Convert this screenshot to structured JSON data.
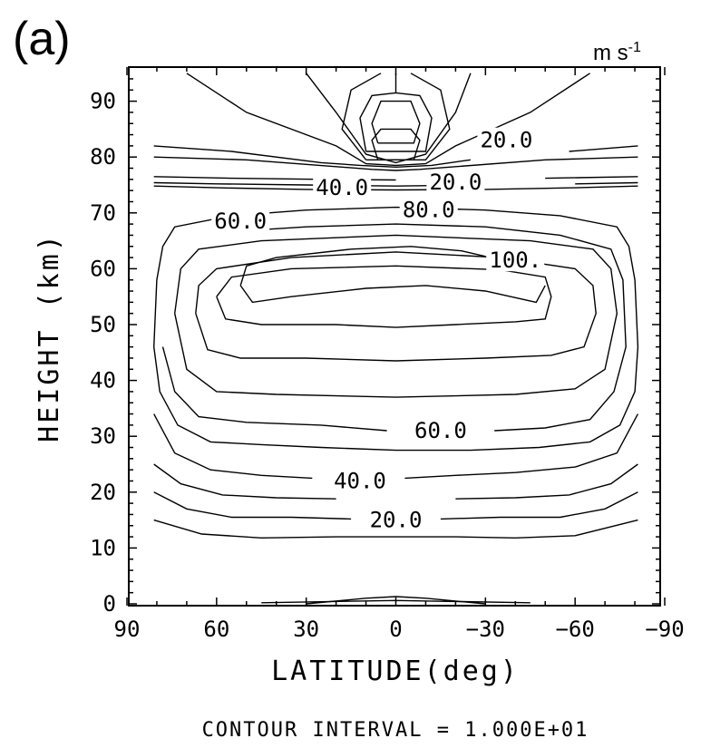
{
  "figure": {
    "panel_label": "(a)",
    "units": "m s",
    "units_sup": "-1",
    "footer": "CONTOUR INTERVAL = 1.000E+01"
  },
  "chart_data": {
    "type": "contour",
    "xlabel": "LATITUDE(deg)",
    "ylabel": "HEIGHT (km)",
    "x_ticks": [
      90,
      60,
      30,
      0,
      -30,
      -60,
      -90
    ],
    "x_tick_labels": [
      "90",
      "60",
      "30",
      "0",
      "−30",
      "−60",
      "−90"
    ],
    "y_ticks": [
      0,
      10,
      20,
      30,
      40,
      50,
      60,
      70,
      80,
      90
    ],
    "y_tick_labels": [
      "0",
      "10",
      "20",
      "30",
      "40",
      "50",
      "60",
      "70",
      "80",
      "90"
    ],
    "xlim": [
      90,
      -90
    ],
    "ylim": [
      0,
      95
    ],
    "contour_interval": 10,
    "contour_labels": [
      {
        "text": "20.0",
        "lat": 0,
        "z": 15
      },
      {
        "text": "40.0",
        "lat": 12,
        "z": 22
      },
      {
        "text": "60.0",
        "lat": -15,
        "z": 31
      },
      {
        "text": "60.0",
        "lat": 52,
        "z": 68.5
      },
      {
        "text": "40.0",
        "lat": 18,
        "z": 74.5
      },
      {
        "text": "80.0",
        "lat": -11,
        "z": 70.5
      },
      {
        "text": "20.0",
        "lat": -20,
        "z": 75.5
      },
      {
        "text": "100.",
        "lat": -40,
        "z": 61.5
      },
      {
        "text": "20.0",
        "lat": -37,
        "z": 83
      }
    ],
    "contours": [
      {
        "level": 10,
        "points": [
          [
            81,
            15
          ],
          [
            65,
            12.5
          ],
          [
            45,
            11.8
          ],
          [
            20,
            12
          ],
          [
            0,
            12
          ],
          [
            -20,
            12
          ],
          [
            -40,
            11.8
          ],
          [
            -60,
            12.2
          ],
          [
            -81,
            15
          ]
        ]
      },
      {
        "level": 20,
        "points": [
          [
            81,
            20
          ],
          [
            70,
            17
          ],
          [
            55,
            15.5
          ],
          [
            35,
            15.5
          ],
          [
            15,
            15.2
          ]
        ]
      },
      {
        "level": 20,
        "points": [
          [
            -15,
            15.2
          ],
          [
            -35,
            15.5
          ],
          [
            -55,
            15.5
          ],
          [
            -70,
            17
          ],
          [
            -81,
            20
          ]
        ]
      },
      {
        "level": 30,
        "points": [
          [
            81,
            25
          ],
          [
            72,
            21.5
          ],
          [
            58,
            19.5
          ],
          [
            40,
            19
          ],
          [
            20,
            18.8
          ]
        ]
      },
      {
        "level": 30,
        "points": [
          [
            -20,
            18.8
          ],
          [
            -40,
            19
          ],
          [
            -58,
            19.5
          ],
          [
            -72,
            21.5
          ],
          [
            -81,
            25
          ]
        ]
      },
      {
        "level": 40,
        "points": [
          [
            81,
            34
          ],
          [
            74,
            27
          ],
          [
            62,
            24
          ],
          [
            45,
            23
          ],
          [
            28,
            22.5
          ]
        ]
      },
      {
        "level": 40,
        "points": [
          [
            -3,
            22.5
          ],
          [
            -20,
            23
          ],
          [
            -40,
            23.5
          ],
          [
            -60,
            24.5
          ],
          [
            -74,
            27
          ],
          [
            -81,
            34
          ]
        ]
      },
      {
        "level": 50,
        "points": [
          [
            81,
            46
          ],
          [
            79,
            38
          ],
          [
            73,
            32
          ],
          [
            62,
            29
          ],
          [
            45,
            28.5
          ],
          [
            25,
            28
          ],
          [
            0,
            27.5
          ],
          [
            -25,
            27.5
          ],
          [
            -48,
            28
          ],
          [
            -65,
            29
          ],
          [
            -75,
            32
          ],
          [
            -80,
            38
          ],
          [
            -81,
            46
          ],
          [
            -80,
            58
          ],
          [
            -78,
            64
          ],
          [
            -74,
            67.5
          ],
          [
            -55,
            69.5
          ],
          [
            -30,
            70.5
          ],
          [
            0,
            71
          ],
          [
            30,
            70.5
          ],
          [
            55,
            69.5
          ],
          [
            74,
            67.5
          ],
          [
            78,
            64
          ],
          [
            80,
            58
          ],
          [
            81,
            46
          ]
        ]
      },
      {
        "level": 60,
        "points": [
          [
            78,
            46
          ],
          [
            74,
            38
          ],
          [
            66,
            33.5
          ],
          [
            50,
            32.5
          ],
          [
            25,
            32
          ],
          [
            3,
            31
          ]
        ]
      },
      {
        "level": 60,
        "points": [
          [
            -33,
            31
          ],
          [
            -50,
            31.5
          ],
          [
            -65,
            33
          ],
          [
            -73,
            38
          ],
          [
            -77,
            46
          ],
          [
            -76,
            58
          ],
          [
            -72,
            63.5
          ],
          [
            -55,
            66
          ],
          [
            -30,
            67.5
          ],
          [
            0,
            68
          ],
          [
            30,
            67.5
          ],
          [
            45,
            67
          ]
        ]
      },
      {
        "level": 70,
        "points": [
          [
            74,
            52
          ],
          [
            70,
            42
          ],
          [
            60,
            38
          ],
          [
            40,
            37.5
          ],
          [
            0,
            37
          ],
          [
            -40,
            37.5
          ],
          [
            -60,
            38.5
          ],
          [
            -70,
            42
          ],
          [
            -74,
            52
          ],
          [
            -72,
            60
          ],
          [
            -66,
            63.5
          ],
          [
            -45,
            65
          ],
          [
            0,
            66
          ],
          [
            45,
            65
          ],
          [
            66,
            63.5
          ],
          [
            72,
            60
          ],
          [
            74,
            52
          ]
        ]
      },
      {
        "level": 80,
        "points": [
          [
            67,
            52
          ],
          [
            63,
            45.5
          ],
          [
            52,
            44
          ],
          [
            30,
            44
          ],
          [
            0,
            43.5
          ],
          [
            -30,
            44
          ],
          [
            -52,
            44.5
          ],
          [
            -63,
            46
          ],
          [
            -67,
            52
          ],
          [
            -66,
            57
          ],
          [
            -60,
            60
          ],
          [
            -35,
            62
          ],
          [
            0,
            63
          ],
          [
            35,
            62
          ],
          [
            60,
            60
          ],
          [
            66,
            57
          ],
          [
            67,
            52
          ]
        ]
      },
      {
        "level": 90,
        "points": [
          [
            60,
            55
          ],
          [
            57,
            51
          ],
          [
            45,
            50
          ],
          [
            20,
            50
          ],
          [
            0,
            49.5
          ],
          [
            -20,
            50
          ],
          [
            -40,
            50.5
          ],
          [
            -50,
            51
          ],
          [
            -52,
            55
          ],
          [
            -50,
            58.5
          ],
          [
            -35,
            59.8
          ],
          [
            0,
            60.5
          ],
          [
            35,
            60
          ],
          [
            55,
            58.5
          ],
          [
            60,
            55
          ]
        ]
      },
      {
        "level": 100,
        "points": [
          [
            52,
            57
          ],
          [
            48,
            54
          ],
          [
            35,
            55
          ],
          [
            10,
            56.5
          ],
          [
            -10,
            57
          ],
          [
            -30,
            56
          ],
          [
            -47,
            54
          ],
          [
            -50,
            57
          ]
        ]
      },
      {
        "level": 100,
        "points": [
          [
            52,
            57
          ],
          [
            50,
            60.5
          ],
          [
            40,
            62
          ],
          [
            15,
            63.5
          ],
          [
            -5,
            64
          ],
          [
            -22,
            63.2
          ],
          [
            -30,
            62.2
          ]
        ]
      },
      {
        "level": 40,
        "points": [
          [
            81,
            74.8
          ],
          [
            60,
            74.5
          ],
          [
            30,
            74.2
          ],
          [
            0,
            74.1
          ],
          [
            -30,
            74.2
          ],
          [
            -60,
            74.5
          ],
          [
            -81,
            74.8
          ]
        ]
      },
      {
        "level": 30,
        "points": [
          [
            81,
            75.4
          ],
          [
            60,
            75.2
          ],
          [
            30,
            75
          ],
          [
            0,
            74.8
          ],
          [
            -15,
            74.9
          ]
        ]
      },
      {
        "level": 30,
        "points": [
          [
            -60,
            75.2
          ],
          [
            -81,
            75.4
          ]
        ]
      },
      {
        "level": 20,
        "points": [
          [
            81,
            76.5
          ],
          [
            55,
            76.2
          ],
          [
            25,
            76
          ],
          [
            0,
            75.9
          ]
        ]
      },
      {
        "level": 20,
        "points": [
          [
            -50,
            76.2
          ],
          [
            -81,
            76.5
          ]
        ]
      },
      {
        "level": 10,
        "points": [
          [
            81,
            80
          ],
          [
            50,
            79.5
          ],
          [
            18,
            78.2
          ],
          [
            8,
            77.8
          ],
          [
            0,
            77.6
          ],
          [
            -8,
            77.8
          ],
          [
            -18,
            78.2
          ],
          [
            -50,
            79.5
          ],
          [
            -81,
            80
          ]
        ]
      },
      {
        "level": 20,
        "points": [
          [
            81,
            82
          ],
          [
            55,
            81
          ],
          [
            25,
            79
          ],
          [
            12,
            78.5
          ],
          [
            0,
            78.2
          ],
          [
            -12,
            78.5
          ],
          [
            -25,
            79.5
          ]
        ]
      },
      {
        "level": 20,
        "points": [
          [
            -58,
            81
          ],
          [
            -81,
            82
          ]
        ]
      },
      {
        "level": 10,
        "points": [
          [
            70,
            95
          ],
          [
            50,
            88
          ],
          [
            20,
            82
          ],
          [
            10,
            78.8
          ],
          [
            0,
            78.5
          ],
          [
            -10,
            78.8
          ],
          [
            -20,
            82
          ],
          [
            -45,
            88
          ],
          [
            -65,
            95
          ]
        ]
      },
      {
        "level": 20,
        "points": [
          [
            30,
            95
          ],
          [
            20,
            88
          ],
          [
            10,
            80.5
          ],
          [
            0,
            79
          ],
          [
            -10,
            80.5
          ],
          [
            -20,
            88
          ],
          [
            -25,
            95
          ]
        ]
      },
      {
        "level": 30,
        "points": [
          [
            10,
            79.5
          ],
          [
            18,
            85
          ],
          [
            15,
            92
          ],
          [
            5,
            95
          ]
        ]
      },
      {
        "level": 30,
        "points": [
          [
            -5,
            95
          ],
          [
            -15,
            92
          ],
          [
            -18,
            85
          ],
          [
            -10,
            79.5
          ],
          [
            10,
            79.5
          ]
        ]
      },
      {
        "level": 40,
        "points": [
          [
            10,
            81
          ],
          [
            12,
            87
          ],
          [
            8,
            91
          ],
          [
            0,
            91.5
          ],
          [
            -8,
            91
          ],
          [
            -12,
            87
          ],
          [
            -10,
            81
          ],
          [
            10,
            81
          ]
        ]
      },
      {
        "level": 50,
        "points": [
          [
            6,
            82.5
          ],
          [
            8,
            86
          ],
          [
            5,
            90
          ],
          [
            -5,
            90
          ],
          [
            -8,
            86
          ],
          [
            -6,
            82.5
          ],
          [
            6,
            82.5
          ]
        ]
      },
      {
        "level": 50,
        "points": [
          [
            6,
            79.5
          ],
          [
            8,
            83
          ],
          [
            5,
            85
          ],
          [
            -5,
            85
          ],
          [
            -8,
            83
          ],
          [
            -6,
            79.5
          ],
          [
            6,
            79.5
          ]
        ]
      },
      {
        "level": 0,
        "points": [
          [
            0,
            91.5
          ],
          [
            0,
            95
          ]
        ]
      },
      {
        "level": 10,
        "points": [
          [
            30,
            0
          ],
          [
            10,
            1
          ],
          [
            0,
            1.3
          ],
          [
            -10,
            1
          ],
          [
            -30,
            0
          ]
        ]
      },
      {
        "level": 0,
        "points": [
          [
            45,
            0.2
          ],
          [
            0,
            0.6
          ],
          [
            -45,
            0.2
          ]
        ]
      }
    ]
  }
}
